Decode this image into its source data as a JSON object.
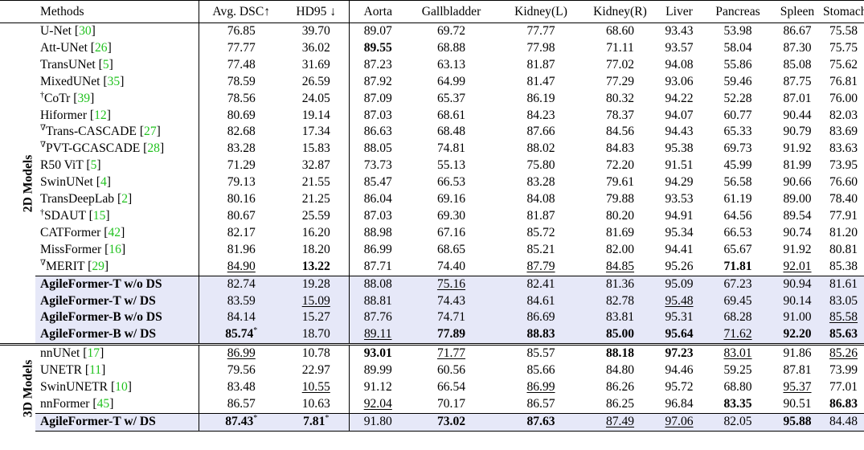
{
  "headers": [
    "Methods",
    "Avg. DSC↑",
    "HD95 ↓",
    "Aorta",
    "Gallbladder",
    "Kidney(L)",
    "Kidney(R)",
    "Liver",
    "Pancreas",
    "Spleen",
    "Stomach"
  ],
  "groups": [
    {
      "label": "2D Models",
      "rows": [
        {
          "prefix": "",
          "name": "U-Net",
          "ref": "30",
          "values": [
            "76.85",
            "39.70",
            "89.07",
            "69.72",
            "77.77",
            "68.60",
            "93.43",
            "53.98",
            "86.67",
            "75.58"
          ],
          "bold": [],
          "underline": [],
          "star": [],
          "ours": false
        },
        {
          "prefix": "",
          "name": "Att-UNet",
          "ref": "26",
          "values": [
            "77.77",
            "36.02",
            "89.55",
            "68.88",
            "77.98",
            "71.11",
            "93.57",
            "58.04",
            "87.30",
            "75.75"
          ],
          "bold": [
            2
          ],
          "underline": [],
          "star": [],
          "ours": false
        },
        {
          "prefix": "",
          "name": "TransUNet",
          "ref": "5",
          "values": [
            "77.48",
            "31.69",
            "87.23",
            "63.13",
            "81.87",
            "77.02",
            "94.08",
            "55.86",
            "85.08",
            "75.62"
          ],
          "bold": [],
          "underline": [],
          "star": [],
          "ours": false
        },
        {
          "prefix": "",
          "name": "MixedUNet",
          "ref": "35",
          "values": [
            "78.59",
            "26.59",
            "87.92",
            "64.99",
            "81.47",
            "77.29",
            "93.06",
            "59.46",
            "87.75",
            "76.81"
          ],
          "bold": [],
          "underline": [],
          "star": [],
          "ours": false
        },
        {
          "prefix": "†",
          "name": "CoTr",
          "ref": "39",
          "values": [
            "78.56",
            "24.05",
            "87.09",
            "65.37",
            "86.19",
            "80.32",
            "94.22",
            "52.28",
            "87.01",
            "76.00"
          ],
          "bold": [],
          "underline": [],
          "star": [],
          "ours": false
        },
        {
          "prefix": "",
          "name": "Hiformer",
          "ref": "12",
          "values": [
            "80.69",
            "19.14",
            "87.03",
            "68.61",
            "84.23",
            "78.37",
            "94.07",
            "60.77",
            "90.44",
            "82.03"
          ],
          "bold": [],
          "underline": [],
          "star": [],
          "ours": false
        },
        {
          "prefix": "∇",
          "name": "Trans-CASCADE",
          "ref": "27",
          "values": [
            "82.68",
            "17.34",
            "86.63",
            "68.48",
            "87.66",
            "84.56",
            "94.43",
            "65.33",
            "90.79",
            "83.69"
          ],
          "bold": [],
          "underline": [],
          "star": [],
          "ours": false
        },
        {
          "prefix": "∇",
          "name": "PVT-GCASCADE",
          "ref": "28",
          "values": [
            "83.28",
            "15.83",
            "88.05",
            "74.81",
            "88.02",
            "84.83",
            "95.38",
            "69.73",
            "91.92",
            "83.63"
          ],
          "bold": [],
          "underline": [],
          "star": [],
          "ours": false
        },
        {
          "prefix": "",
          "name": "R50 ViT",
          "ref": "5",
          "values": [
            "71.29",
            "32.87",
            "73.73",
            "55.13",
            "75.80",
            "72.20",
            "91.51",
            "45.99",
            "81.99",
            "73.95"
          ],
          "bold": [],
          "underline": [],
          "star": [],
          "ours": false
        },
        {
          "prefix": "",
          "name": "SwinUNet",
          "ref": "4",
          "values": [
            "79.13",
            "21.55",
            "85.47",
            "66.53",
            "83.28",
            "79.61",
            "94.29",
            "56.58",
            "90.66",
            "76.60"
          ],
          "bold": [],
          "underline": [],
          "star": [],
          "ours": false
        },
        {
          "prefix": "",
          "name": "TransDeepLab",
          "ref": "2",
          "values": [
            "80.16",
            "21.25",
            "86.04",
            "69.16",
            "84.08",
            "79.88",
            "93.53",
            "61.19",
            "89.00",
            "78.40"
          ],
          "bold": [],
          "underline": [],
          "star": [],
          "ours": false
        },
        {
          "prefix": "†",
          "name": "SDAUT",
          "ref": "15",
          "values": [
            "80.67",
            "25.59",
            "87.03",
            "69.30",
            "81.87",
            "80.20",
            "94.91",
            "64.56",
            "89.54",
            "77.91"
          ],
          "bold": [],
          "underline": [],
          "star": [],
          "ours": false
        },
        {
          "prefix": "",
          "name": "CATFormer",
          "ref": "42",
          "values": [
            "82.17",
            "16.20",
            "88.98",
            "67.16",
            "85.72",
            "81.69",
            "95.34",
            "66.53",
            "90.74",
            "81.20"
          ],
          "bold": [],
          "underline": [],
          "star": [],
          "ours": false
        },
        {
          "prefix": "",
          "name": "MissFormer",
          "ref": "16",
          "values": [
            "81.96",
            "18.20",
            "86.99",
            "68.65",
            "85.21",
            "82.00",
            "94.41",
            "65.67",
            "91.92",
            "80.81"
          ],
          "bold": [],
          "underline": [],
          "star": [],
          "ours": false
        },
        {
          "prefix": "∇",
          "name": "MERIT",
          "ref": "29",
          "values": [
            "84.90",
            "13.22",
            "87.71",
            "74.40",
            "87.79",
            "84.85",
            "95.26",
            "71.81",
            "92.01",
            "85.38"
          ],
          "bold": [
            1,
            7
          ],
          "underline": [
            0,
            4,
            5,
            8
          ],
          "star": [],
          "ours": false
        },
        {
          "prefix": "",
          "name": "AgileFormer-T w/o DS",
          "ref": "",
          "values": [
            "82.74",
            "19.28",
            "88.08",
            "75.16",
            "82.41",
            "81.36",
            "95.09",
            "67.23",
            "90.94",
            "81.61"
          ],
          "bold": [],
          "underline": [
            3
          ],
          "star": [],
          "ours": true
        },
        {
          "prefix": "",
          "name": "AgileFormer-T w/ DS",
          "ref": "",
          "values": [
            "83.59",
            "15.09",
            "88.81",
            "74.43",
            "84.61",
            "82.78",
            "95.48",
            "69.45",
            "90.14",
            "83.05"
          ],
          "bold": [],
          "underline": [
            1,
            6
          ],
          "star": [],
          "ours": true
        },
        {
          "prefix": "",
          "name": "AgileFormer-B w/o DS",
          "ref": "",
          "values": [
            "84.14",
            "15.27",
            "87.76",
            "74.71",
            "86.69",
            "83.81",
            "95.31",
            "68.28",
            "91.00",
            "85.58"
          ],
          "bold": [],
          "underline": [
            9
          ],
          "star": [],
          "ours": true
        },
        {
          "prefix": "",
          "name": "AgileFormer-B w/ DS",
          "ref": "",
          "values": [
            "85.74",
            "18.70",
            "89.11",
            "77.89",
            "88.83",
            "85.00",
            "95.64",
            "71.62",
            "92.20",
            "85.63"
          ],
          "bold": [
            0,
            3,
            4,
            5,
            6,
            8,
            9
          ],
          "underline": [
            2,
            7
          ],
          "star": [
            0
          ],
          "ours": true
        }
      ]
    },
    {
      "label": "3D Models",
      "rows": [
        {
          "prefix": "",
          "name": "nnUNet",
          "ref": "17",
          "values": [
            "86.99",
            "10.78",
            "93.01",
            "71.77",
            "85.57",
            "88.18",
            "97.23",
            "83.01",
            "91.86",
            "85.26"
          ],
          "bold": [
            2,
            5,
            6
          ],
          "underline": [
            0,
            3,
            7,
            9
          ],
          "star": [],
          "ours": false
        },
        {
          "prefix": "",
          "name": "UNETR",
          "ref": "11",
          "values": [
            "79.56",
            "22.97",
            "89.99",
            "60.56",
            "85.66",
            "84.80",
            "94.46",
            "59.25",
            "87.81",
            "73.99"
          ],
          "bold": [],
          "underline": [],
          "star": [],
          "ours": false
        },
        {
          "prefix": "",
          "name": "SwinUNETR",
          "ref": "10",
          "values": [
            "83.48",
            "10.55",
            "91.12",
            "66.54",
            "86.99",
            "86.26",
            "95.72",
            "68.80",
            "95.37",
            "77.01"
          ],
          "bold": [],
          "underline": [
            1,
            4,
            8
          ],
          "star": [],
          "ours": false
        },
        {
          "prefix": "",
          "name": "nnFormer",
          "ref": "45",
          "values": [
            "86.57",
            "10.63",
            "92.04",
            "70.17",
            "86.57",
            "86.25",
            "96.84",
            "83.35",
            "90.51",
            "86.83"
          ],
          "bold": [
            7,
            9
          ],
          "underline": [
            2
          ],
          "star": [],
          "ours": false
        },
        {
          "prefix": "",
          "name": "AgileFormer-T w/ DS",
          "ref": "",
          "values": [
            "87.43",
            "7.81",
            "91.80",
            "73.02",
            "87.63",
            "87.49",
            "97.06",
            "82.05",
            "95.88",
            "84.48"
          ],
          "bold": [
            0,
            1,
            3,
            4,
            8
          ],
          "underline": [
            5,
            6
          ],
          "star": [
            0,
            1
          ],
          "ours": true
        }
      ]
    }
  ]
}
